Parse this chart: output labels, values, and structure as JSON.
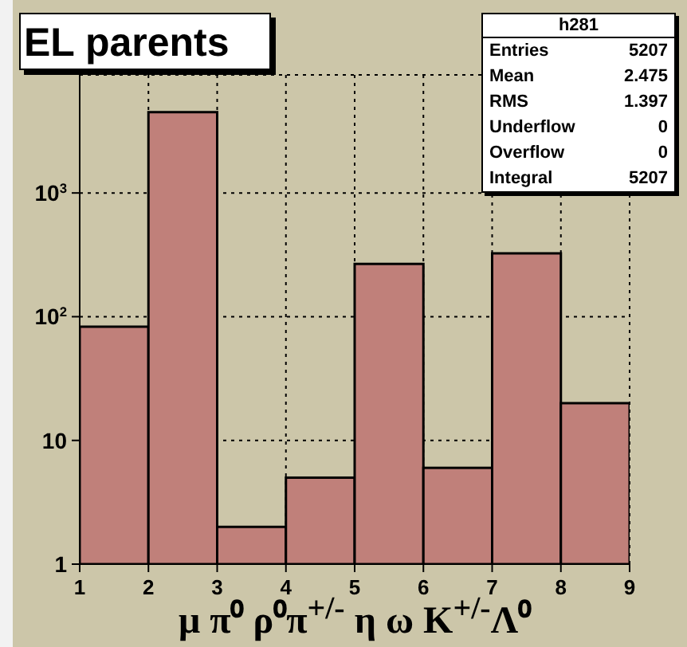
{
  "chart_data": {
    "type": "histogram",
    "title": "EL parents",
    "xlabel": "μ π⁰ ρ⁰π$^{+/-}$ η ω K$^{+/-}$Λ⁰",
    "bins": [
      1,
      2,
      3,
      4,
      5,
      6,
      7,
      8,
      9
    ],
    "values": [
      83,
      4500,
      2,
      5,
      267,
      6,
      325,
      20
    ],
    "color": "#c0807a",
    "log": "y",
    "xlim": [
      1,
      9
    ],
    "xticks": [
      1,
      2,
      3,
      4,
      5,
      6,
      7,
      8,
      9
    ],
    "ylim": [
      1,
      9000
    ],
    "yticks": [
      1,
      10,
      {
        "value": 100,
        "label": "10$^{2}$"
      },
      {
        "value": 1000,
        "label": "10$^{3}$"
      }
    ],
    "grid": true,
    "annotations": [
      "h281",
      "Entries 5207",
      "Mean 2.475",
      "RMS 1.397",
      "Underflow 0",
      "Overflow 0",
      "Integral 5207"
    ]
  }
}
